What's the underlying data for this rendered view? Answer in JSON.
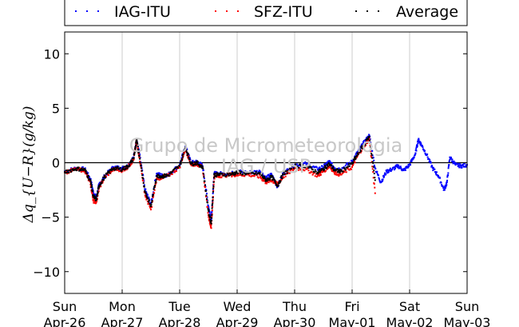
{
  "chart_data": {
    "type": "scatter",
    "ylabel": "Δq_{U−R}(g/kg)",
    "ylim": [
      -12,
      12
    ],
    "yticks": [
      10,
      5,
      0,
      -5,
      -10
    ],
    "xlim": [
      0,
      7
    ],
    "grid": "vertical",
    "legend_position": "top",
    "watermark": [
      "Grupo de Micrometeorologia",
      "IAG / USP"
    ],
    "x_ticks": [
      {
        "x": 0,
        "day": "Sun",
        "date": "Apr-26"
      },
      {
        "x": 1,
        "day": "Mon",
        "date": "Apr-27"
      },
      {
        "x": 2,
        "day": "Tue",
        "date": "Apr-28"
      },
      {
        "x": 3,
        "day": "Wed",
        "date": "Apr-29"
      },
      {
        "x": 4,
        "day": "Thu",
        "date": "Apr-30"
      },
      {
        "x": 5,
        "day": "Fri",
        "date": "May-01"
      },
      {
        "x": 6,
        "day": "Sat",
        "date": "May-02"
      },
      {
        "x": 7,
        "day": "Sun",
        "date": "May-03"
      }
    ],
    "series": [
      {
        "name": "IAG-ITU",
        "color": "#0000ff",
        "x": [
          0.0,
          0.2,
          0.35,
          0.45,
          0.5,
          0.55,
          0.6,
          0.7,
          0.85,
          1.0,
          1.1,
          1.2,
          1.25,
          1.3,
          1.4,
          1.5,
          1.6,
          1.7,
          1.8,
          2.0,
          2.1,
          2.2,
          2.3,
          2.4,
          2.5,
          2.55,
          2.6,
          2.7,
          2.9,
          3.0,
          3.2,
          3.4,
          3.5,
          3.6,
          3.7,
          3.8,
          4.0,
          4.2,
          4.4,
          4.5,
          4.6,
          4.7,
          4.8,
          5.0,
          5.1,
          5.2,
          5.3,
          5.4,
          5.5,
          5.6,
          5.7,
          5.8,
          5.9,
          6.0,
          6.1,
          6.15,
          6.2,
          6.3,
          6.4,
          6.5,
          6.6,
          6.65,
          6.7,
          6.8,
          6.9,
          7.0
        ],
        "y": [
          -0.8,
          -0.5,
          -0.6,
          -1.5,
          -2.8,
          -3.2,
          -2.0,
          -1.2,
          -0.4,
          -0.5,
          -0.3,
          0.5,
          2.1,
          0.8,
          -2.5,
          -3.8,
          -1.0,
          -1.2,
          -1.1,
          -0.2,
          1.5,
          0.0,
          0.1,
          -0.3,
          -4.0,
          -5.2,
          -1.0,
          -1.0,
          -1.0,
          -0.8,
          -0.9,
          -0.8,
          -1.4,
          -1.1,
          -2.2,
          -1.0,
          -0.2,
          -0.1,
          -0.6,
          -0.4,
          0.1,
          -0.5,
          -0.6,
          0.1,
          1.0,
          1.8,
          2.5,
          -0.5,
          -1.8,
          -0.8,
          -0.6,
          -0.3,
          -0.7,
          -0.2,
          0.8,
          2.1,
          1.7,
          0.7,
          -0.5,
          -1.2,
          -2.5,
          -1.8,
          0.5,
          -0.2,
          -0.3,
          -0.2
        ]
      },
      {
        "name": "SFZ-ITU",
        "color": "#ff0000",
        "x": [
          0.0,
          0.2,
          0.35,
          0.45,
          0.5,
          0.55,
          0.6,
          0.7,
          0.85,
          1.0,
          1.1,
          1.2,
          1.25,
          1.3,
          1.4,
          1.5,
          1.6,
          1.7,
          1.8,
          2.0,
          2.1,
          2.2,
          2.3,
          2.4,
          2.5,
          2.55,
          2.6,
          2.7,
          2.9,
          3.0,
          3.2,
          3.4,
          3.5,
          3.6,
          3.7,
          3.8,
          4.0,
          4.2,
          4.4,
          4.5,
          4.6,
          4.7,
          4.8,
          5.0,
          5.1,
          5.2,
          5.3,
          5.4
        ],
        "y": [
          -0.9,
          -0.6,
          -0.7,
          -2.0,
          -3.5,
          -3.6,
          -2.3,
          -1.3,
          -0.6,
          -0.7,
          -0.4,
          0.3,
          2.0,
          0.5,
          -3.0,
          -4.3,
          -1.5,
          -1.3,
          -1.2,
          -0.4,
          1.3,
          -0.2,
          -0.1,
          -0.5,
          -4.8,
          -6.0,
          -1.3,
          -1.2,
          -1.1,
          -1.1,
          -1.1,
          -1.3,
          -1.8,
          -1.6,
          -2.0,
          -1.3,
          -0.5,
          -0.6,
          -1.2,
          -0.8,
          -0.3,
          -0.9,
          -1.1,
          -0.4,
          0.7,
          1.5,
          2.2,
          -2.8
        ]
      },
      {
        "name": "Average",
        "color": "#000000",
        "x": [
          0.0,
          0.2,
          0.35,
          0.45,
          0.5,
          0.55,
          0.6,
          0.7,
          0.85,
          1.0,
          1.1,
          1.2,
          1.25,
          1.3,
          1.4,
          1.5,
          1.6,
          1.7,
          1.8,
          2.0,
          2.1,
          2.2,
          2.3,
          2.4,
          2.5,
          2.55,
          2.6,
          2.7,
          2.9,
          3.0,
          3.2,
          3.4,
          3.5,
          3.6,
          3.7,
          3.8,
          4.0,
          4.2,
          4.4,
          4.5,
          4.6,
          4.7,
          4.8,
          5.0,
          5.1,
          5.2,
          5.3,
          5.4
        ],
        "y": [
          -0.85,
          -0.55,
          -0.65,
          -1.7,
          -3.1,
          -3.4,
          -2.1,
          -1.25,
          -0.5,
          -0.6,
          -0.35,
          0.4,
          2.05,
          0.6,
          -2.7,
          -4.0,
          -1.2,
          -1.25,
          -1.15,
          -0.3,
          1.4,
          -0.1,
          0.0,
          -0.4,
          -4.4,
          -5.6,
          -1.1,
          -1.1,
          -1.05,
          -0.9,
          -1.0,
          -1.0,
          -1.6,
          -1.3,
          -2.1,
          -1.1,
          -0.3,
          -0.3,
          -0.9,
          -0.6,
          -0.1,
          -0.7,
          -0.8,
          -0.1,
          0.8,
          1.6,
          2.4,
          -1.6
        ]
      }
    ]
  }
}
